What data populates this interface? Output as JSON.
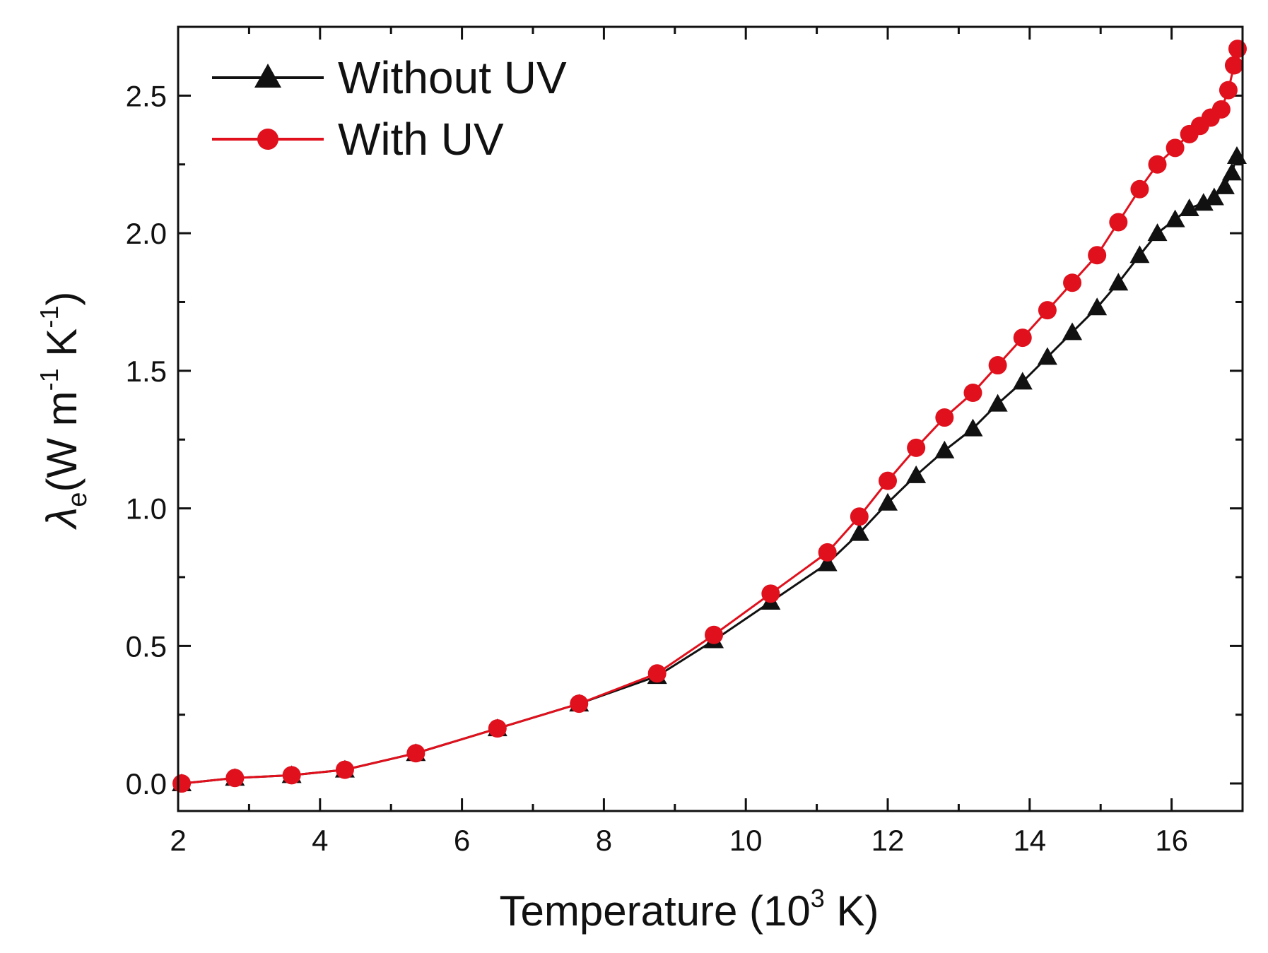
{
  "chart_data": {
    "type": "line",
    "title": "",
    "xlabel": {
      "main": "Temperature (10",
      "sup": "3",
      "tail": " K)"
    },
    "ylabel": {
      "symbol": "λ",
      "sub": "e",
      "unit_a": "(W m",
      "sup_a": "-1",
      "unit_b": " K",
      "sup_b": "-1",
      "close": ")"
    },
    "xlim": [
      2,
      17
    ],
    "ylim": [
      -0.1,
      2.75
    ],
    "xticks": [
      2,
      4,
      6,
      8,
      10,
      12,
      14,
      16
    ],
    "xtick_labels": [
      "2",
      "4",
      "6",
      "8",
      "10",
      "12",
      "14",
      "16"
    ],
    "yticks": [
      0.0,
      0.5,
      1.0,
      1.5,
      2.0,
      2.5
    ],
    "ytick_labels": [
      "0.0",
      "0.5",
      "1.0",
      "1.5",
      "2.0",
      "2.5"
    ],
    "legend_position": "top-left",
    "series": [
      {
        "name": "Without UV",
        "color": "#111111",
        "marker": "triangle",
        "x": [
          2.05,
          2.8,
          3.6,
          4.35,
          5.35,
          6.5,
          7.65,
          8.75,
          9.55,
          10.35,
          11.15,
          11.6,
          12.0,
          12.4,
          12.8,
          13.2,
          13.55,
          13.9,
          14.25,
          14.6,
          14.95,
          15.25,
          15.55,
          15.8,
          16.05,
          16.25,
          16.45,
          16.6,
          16.75,
          16.85,
          16.92
        ],
        "y": [
          0.0,
          0.02,
          0.03,
          0.05,
          0.11,
          0.2,
          0.29,
          0.39,
          0.52,
          0.66,
          0.8,
          0.91,
          1.02,
          1.12,
          1.21,
          1.29,
          1.38,
          1.46,
          1.55,
          1.64,
          1.73,
          1.82,
          1.92,
          2.0,
          2.05,
          2.09,
          2.11,
          2.13,
          2.17,
          2.22,
          2.28
        ]
      },
      {
        "name": "With UV",
        "color": "#e0101c",
        "marker": "circle",
        "x": [
          2.05,
          2.8,
          3.6,
          4.35,
          5.35,
          6.5,
          7.65,
          8.75,
          9.55,
          10.35,
          11.15,
          11.6,
          12.0,
          12.4,
          12.8,
          13.2,
          13.55,
          13.9,
          14.25,
          14.6,
          14.95,
          15.25,
          15.55,
          15.8,
          16.05,
          16.25,
          16.4,
          16.55,
          16.7,
          16.8,
          16.88,
          16.93
        ],
        "y": [
          0.0,
          0.02,
          0.03,
          0.05,
          0.11,
          0.2,
          0.29,
          0.4,
          0.54,
          0.69,
          0.84,
          0.97,
          1.1,
          1.22,
          1.33,
          1.42,
          1.52,
          1.62,
          1.72,
          1.82,
          1.92,
          2.04,
          2.16,
          2.25,
          2.31,
          2.36,
          2.39,
          2.42,
          2.45,
          2.52,
          2.61,
          2.67
        ]
      }
    ]
  }
}
